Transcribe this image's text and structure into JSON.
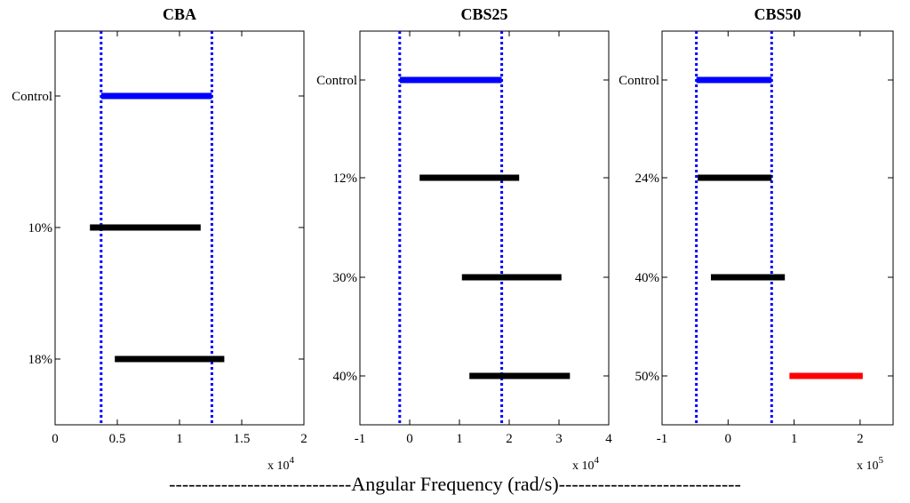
{
  "chart_data": [
    {
      "type": "interval",
      "title": "CBA",
      "categories": [
        "Control",
        "10%",
        "18%"
      ],
      "intervals": [
        {
          "label": "Control",
          "start": 3700,
          "end": 12600,
          "color": "#0000ff"
        },
        {
          "label": "10%",
          "start": 2800,
          "end": 11700,
          "color": "#000000"
        },
        {
          "label": "18%",
          "start": 4800,
          "end": 13600,
          "color": "#000000"
        }
      ],
      "reference_lines": [
        3700,
        12600
      ],
      "xlim": [
        0,
        20000
      ],
      "xticks": [
        0,
        5000,
        10000,
        15000,
        20000
      ],
      "xtick_labels": [
        "0",
        "0.5",
        "1",
        "1.5",
        "2"
      ],
      "scale_base": "x 10",
      "scale_exp": "4"
    },
    {
      "type": "interval",
      "title": "CBS25",
      "categories": [
        "Control",
        "12%",
        "30%",
        "40%"
      ],
      "intervals": [
        {
          "label": "Control",
          "start": -2000,
          "end": 18500,
          "color": "#0000ff"
        },
        {
          "label": "12%",
          "start": 2000,
          "end": 22000,
          "color": "#000000"
        },
        {
          "label": "30%",
          "start": 10500,
          "end": 30500,
          "color": "#000000"
        },
        {
          "label": "40%",
          "start": 12000,
          "end": 32200,
          "color": "#000000"
        }
      ],
      "reference_lines": [
        -2000,
        18500
      ],
      "xlim": [
        -10000,
        40000
      ],
      "xticks": [
        -10000,
        0,
        10000,
        20000,
        30000,
        40000
      ],
      "xtick_labels": [
        "-1",
        "0",
        "1",
        "2",
        "3",
        "4"
      ],
      "scale_base": "x 10",
      "scale_exp": "4"
    },
    {
      "type": "interval",
      "title": "CBS50",
      "categories": [
        "Control",
        "24%",
        "40%",
        "50%"
      ],
      "intervals": [
        {
          "label": "Control",
          "start": -48000,
          "end": 66000,
          "color": "#0000ff"
        },
        {
          "label": "24%",
          "start": -46000,
          "end": 66000,
          "color": "#000000"
        },
        {
          "label": "40%",
          "start": -26000,
          "end": 86000,
          "color": "#000000"
        },
        {
          "label": "50%",
          "start": 93000,
          "end": 204000,
          "color": "#ff0000"
        }
      ],
      "reference_lines": [
        -48000,
        66000
      ],
      "xlim": [
        -100000,
        250000
      ],
      "xticks": [
        -100000,
        0,
        100000,
        200000
      ],
      "xtick_labels": [
        "-1",
        "0",
        "1",
        "2"
      ],
      "scale_base": "x 10",
      "scale_exp": "5"
    }
  ],
  "x_axis_label": "----------------------------Angular Frequency (rad/s)----------------------------",
  "colors": {
    "reference": "#0000ff",
    "control": "#0000ff",
    "treated": "#000000",
    "highlight": "#ff0000"
  }
}
